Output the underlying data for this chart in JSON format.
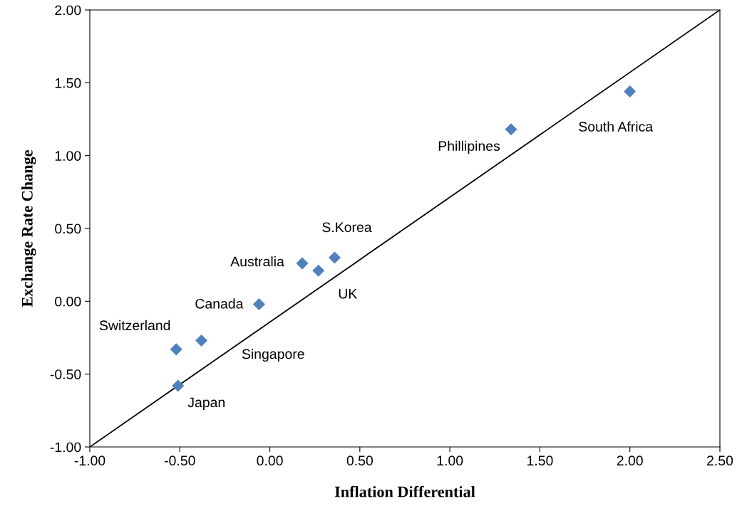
{
  "chart_data": {
    "type": "scatter",
    "xlabel": "Inflation Differential",
    "ylabel": "Exchange Rate Change",
    "series": [
      {
        "color": "#4f81bd",
        "marker": "diamond",
        "x": [
          2.0,
          1.34,
          0.36,
          0.27,
          0.18,
          -0.06,
          -0.38,
          -0.52,
          -0.51
        ],
        "values": [
          1.44,
          1.18,
          0.3,
          0.21,
          0.26,
          -0.02,
          -0.27,
          -0.33,
          -0.58
        ]
      },
      {
        "type": "line",
        "color": "#000000",
        "marker": "none",
        "x": [
          -1.0,
          2.5
        ],
        "values": [
          -1.0,
          2.0
        ]
      }
    ],
    "annotations": [
      {
        "text": "South Africa",
        "x": 2.0,
        "y": 1.44
      },
      {
        "text": "Phillipines",
        "x": 1.34,
        "y": 1.18
      },
      {
        "text": "S.Korea",
        "x": 0.36,
        "y": 0.3
      },
      {
        "text": "UK",
        "x": 0.27,
        "y": 0.21
      },
      {
        "text": "Australia",
        "x": 0.18,
        "y": 0.26
      },
      {
        "text": "Canada",
        "x": -0.06,
        "y": -0.02
      },
      "Singapore",
      {
        "text": "Switzerland",
        "x": -0.52,
        "y": -0.33
      },
      {
        "text": "Japan",
        "x": -0.51,
        "y": -0.58
      }
    ],
    "xlim": [
      -1.0,
      2.5
    ],
    "ylim": [
      -1.0,
      2.0
    ],
    "xticks": [
      {
        "value": -1.0,
        "label": "-1.00"
      },
      {
        "value": -0.5,
        "label": "-0.50"
      },
      {
        "value": 0.0,
        "label": "0.00"
      },
      {
        "value": 0.5,
        "label": "0.50"
      },
      {
        "value": 1.0,
        "label": "1.00"
      },
      {
        "value": 1.5,
        "label": "1.50"
      },
      {
        "value": 2.0,
        "label": "2.00"
      },
      {
        "value": 2.5,
        "label": "2.50"
      }
    ],
    "yticks": [
      {
        "value": -1.0,
        "label": "-1.00"
      },
      {
        "value": -0.5,
        "label": "-0.50"
      },
      {
        "value": 0.0,
        "label": "0.00"
      },
      {
        "value": 0.5,
        "label": "0.50"
      },
      {
        "value": 1.0,
        "label": "1.00"
      },
      {
        "value": 1.5,
        "label": "1.50"
      },
      {
        "value": 2.0,
        "label": "2.00"
      }
    ],
    "grid": false,
    "legend": false
  }
}
